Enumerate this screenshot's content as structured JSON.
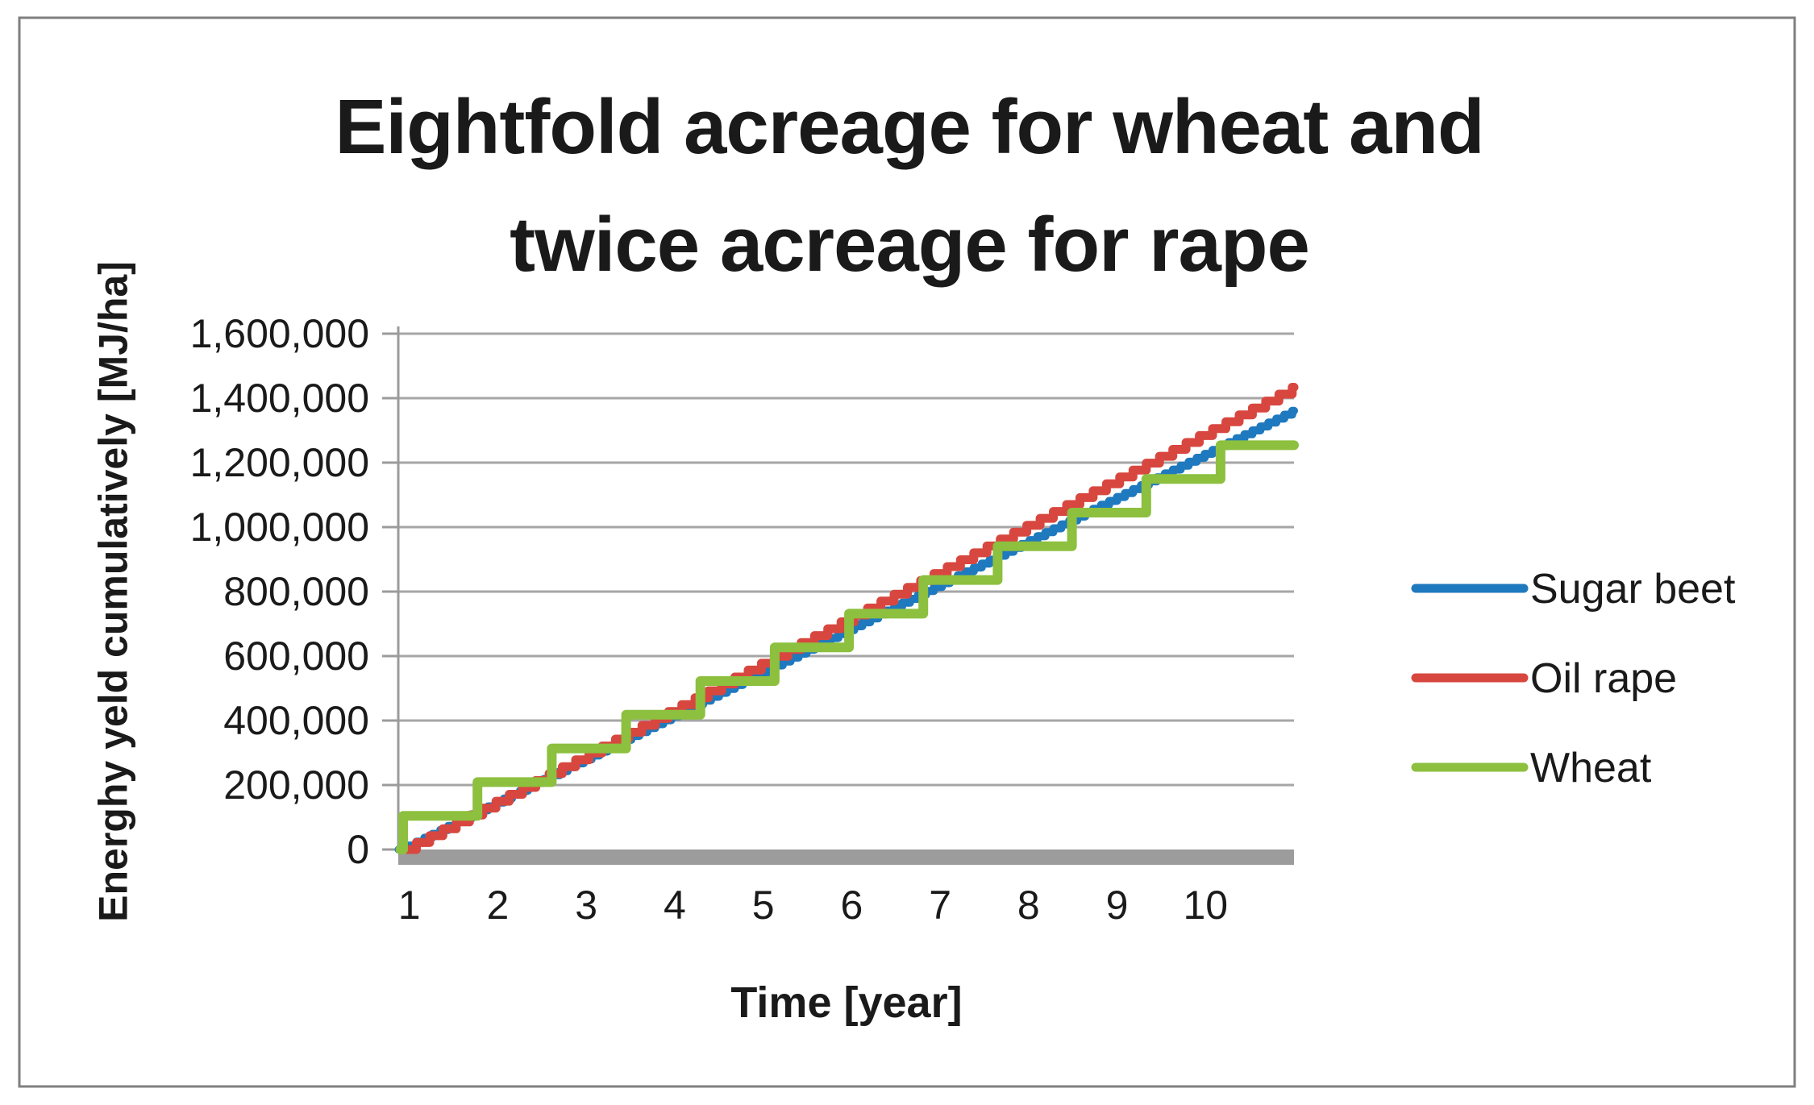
{
  "figure": {
    "background": "#ffffff",
    "border_color": "#7f7f7f",
    "text_color": "#1a1a1a",
    "gridline_color": "#a6a6a6",
    "axis_color": "#9b9b9b",
    "baseline_bar_color": "#9c9c9c"
  },
  "title": {
    "line1": "Eightfold acreage for wheat and",
    "line2": "twice acreage for rape"
  },
  "axes": {
    "x": {
      "label": "Time [year]",
      "tick_labels": [
        "1",
        "2",
        "3",
        "4",
        "5",
        "6",
        "7",
        "8",
        "9",
        "10"
      ]
    },
    "y": {
      "label": "Energhy yeld cumulatively [MJ/ha]",
      "tick_labels": [
        "0",
        "200,000",
        "400,000",
        "600,000",
        "800,000",
        "1,000,000",
        "1,200,000",
        "1,400,000",
        "1,600,000"
      ],
      "min": 0,
      "max": 1600000,
      "tick_step": 200000
    }
  },
  "legend": {
    "position": "right",
    "entries": [
      {
        "label": "Sugar beet",
        "color": "#1f79be"
      },
      {
        "label": "Oil rape",
        "color": "#d8473f"
      },
      {
        "label": "Wheat",
        "color": "#8cc03e"
      }
    ]
  },
  "chart_data": {
    "type": "line",
    "title": "Eightfold acreage for wheat and twice acreage for rape",
    "xlabel": "Time [year]",
    "ylabel": "Energhy yeld cumulatively [MJ/ha]",
    "x_range": [
      0.875,
      11.0
    ],
    "ylim": [
      0,
      1600000
    ],
    "x_ticks": [
      1,
      2,
      3,
      4,
      5,
      6,
      7,
      8,
      9,
      10
    ],
    "y_ticks": [
      0,
      200000,
      400000,
      600000,
      800000,
      1000000,
      1200000,
      1400000,
      1600000
    ],
    "grid": {
      "horizontal": true,
      "vertical": false
    },
    "legend_position": "right",
    "years": [
      1,
      2,
      3,
      4,
      5,
      6,
      7,
      8,
      9,
      10,
      11
    ],
    "series": [
      {
        "name": "Sugar beet",
        "color": "#1f79be",
        "line_width": 10,
        "shape": "staircase",
        "x_start": 0.88,
        "first_jump": 0.99,
        "period_years": 0.09,
        "step_height": 12150,
        "final_value": 1360800,
        "annual_cumulative": [
          12150,
          145800,
          279450,
          413100,
          546750,
          680400,
          814050,
          947700,
          1093500,
          1227150,
          1360800
        ]
      },
      {
        "name": "Oil rape",
        "color": "#d8473f",
        "line_width": 11,
        "shape": "staircase",
        "x_start": 0.9,
        "first_jump": 1.08,
        "period_years": 0.15,
        "step_height": 21400,
        "final_value": 1433800,
        "annual_cumulative": [
          0,
          149800,
          278200,
          428000,
          577800,
          706200,
          856000,
          1005800,
          1134200,
          1284000,
          1433800
        ]
      },
      {
        "name": "Wheat",
        "color": "#8cc03e",
        "line_width": 12,
        "shape": "staircase",
        "x_start": 0.9,
        "first_jump": 0.93,
        "period_years": 0.84,
        "step_height": 104500,
        "final_value": 1254000,
        "annual_cumulative": [
          104500,
          209000,
          313500,
          418000,
          522500,
          731500,
          836000,
          940500,
          1045000,
          1149500,
          1254000
        ]
      }
    ]
  }
}
